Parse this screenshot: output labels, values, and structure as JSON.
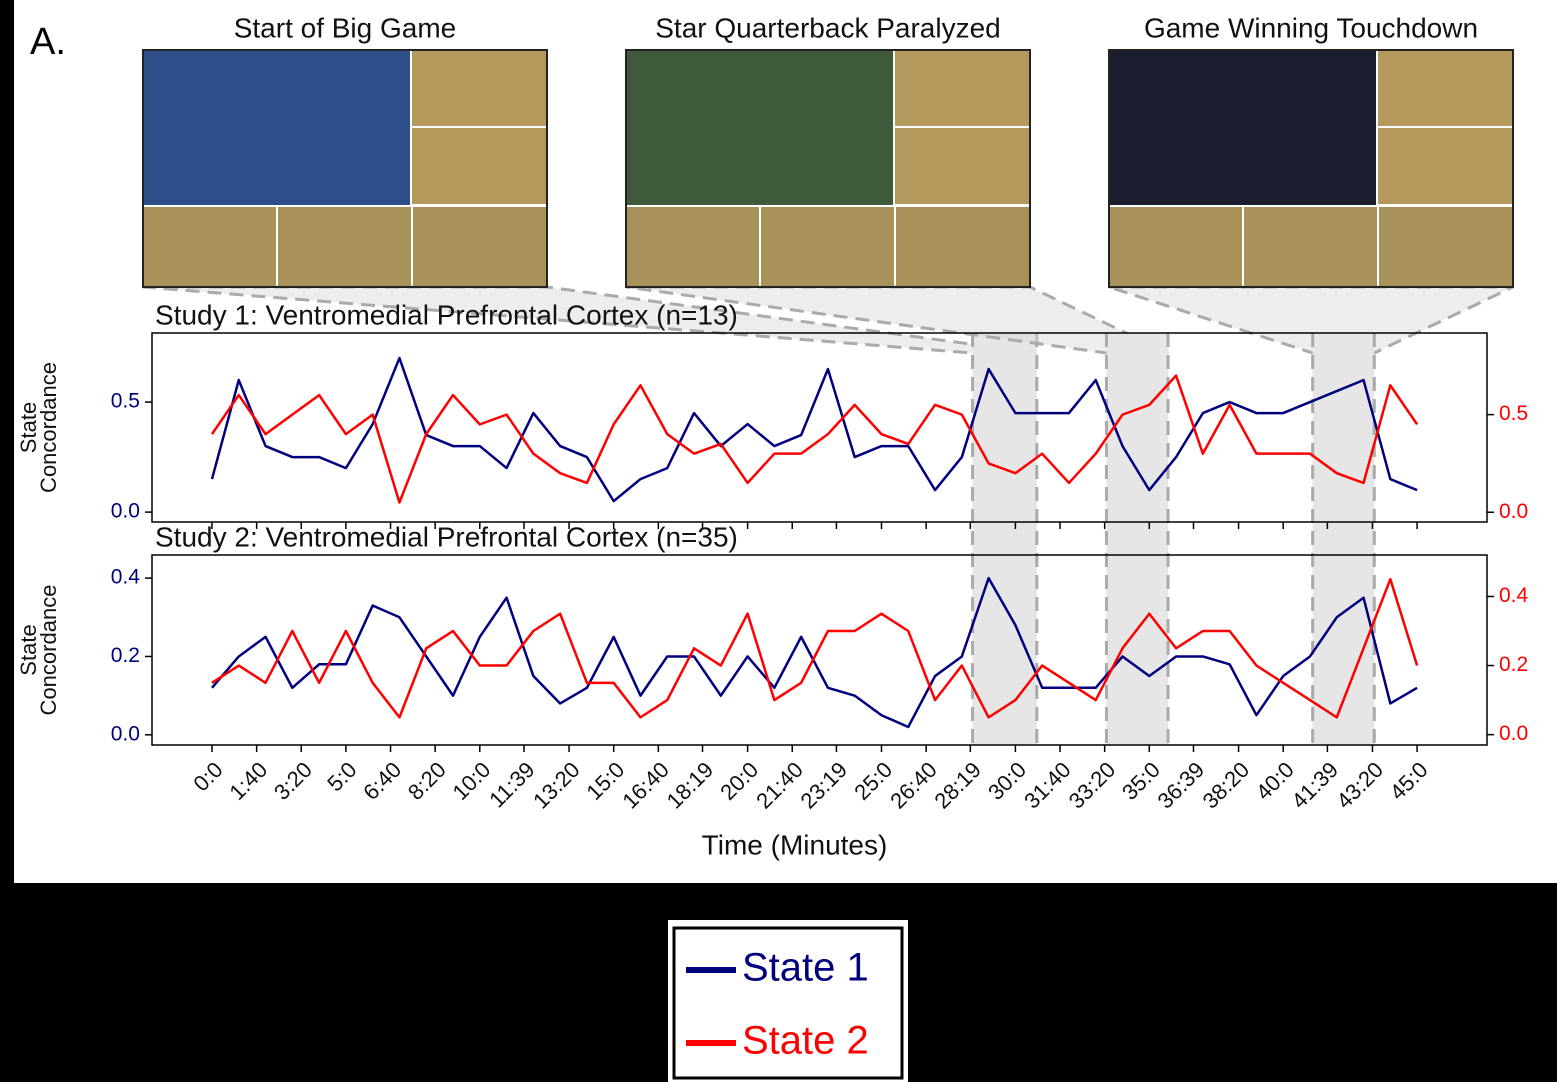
{
  "label": "A.",
  "scenes": [
    {
      "title": "Start of Big Game",
      "start": 28.4,
      "end": 30.8
    },
    {
      "title": "Star Quarterback Paralyzed",
      "start": 33.4,
      "end": 35.7
    },
    {
      "title": "Game Winning Touchdown",
      "start": 41.1,
      "end": 43.4
    }
  ],
  "chart_data": [
    {
      "type": "line",
      "title": "Study 1: Ventromedial Prefrontal Cortex (n=13)",
      "ylabel": [
        "State",
        "Concordance"
      ],
      "x": [
        0,
        1,
        2,
        3,
        4,
        5,
        6,
        7,
        8,
        9,
        10,
        11,
        12,
        13,
        14,
        15,
        16,
        17,
        18,
        19,
        20,
        21,
        22,
        23,
        24,
        25,
        26,
        27,
        28,
        29,
        30,
        31,
        32,
        33,
        34,
        35,
        36,
        37,
        38,
        39,
        40,
        41,
        42,
        43,
        44,
        45
      ],
      "xlim": [
        -2.24,
        47.61
      ],
      "ylim": [
        -0.045,
        0.814
      ],
      "yticks": [
        {
          "value": 0,
          "label": "0.0"
        },
        0.5
      ],
      "y2lim": [
        -0.05,
        0.918
      ],
      "y2ticks": [
        {
          "value": 0,
          "label": "0.0"
        },
        0.5
      ],
      "series": [
        {
          "name": "State 1",
          "color": "#00007f",
          "values": [
            0.15,
            0.6,
            0.3,
            0.25,
            0.25,
            0.2,
            0.4,
            0.7,
            0.35,
            0.3,
            0.3,
            0.2,
            0.45,
            0.3,
            0.25,
            0.05,
            0.15,
            0.2,
            0.45,
            0.3,
            0.4,
            0.3,
            0.35,
            0.65,
            0.25,
            0.3,
            0.3,
            0.1,
            0.25,
            0.65,
            0.45,
            0.45,
            0.45,
            0.6,
            0.3,
            0.1,
            0.25,
            0.45,
            0.5,
            0.45,
            0.45,
            0.5,
            0.55,
            0.6,
            0.15,
            0.1
          ]
        },
        {
          "name": "State 2",
          "color": "#ff0000",
          "axis": "y2",
          "values": [
            0.4,
            0.6,
            0.4,
            0.5,
            0.6,
            0.4,
            0.5,
            0.05,
            0.4,
            0.6,
            0.45,
            0.5,
            0.3,
            0.2,
            0.15,
            0.45,
            0.65,
            0.4,
            0.3,
            0.35,
            0.15,
            0.3,
            0.3,
            0.4,
            0.55,
            0.4,
            0.35,
            0.55,
            0.5,
            0.25,
            0.2,
            0.3,
            0.15,
            0.3,
            0.5,
            0.55,
            0.7,
            0.3,
            0.55,
            0.3,
            0.3,
            0.3,
            0.2,
            0.15,
            0.65,
            0.45
          ]
        }
      ]
    },
    {
      "type": "line",
      "title": "Study 2: Ventromedial Prefrontal Cortex (n=35)",
      "ylabel": [
        "State",
        "Concordance"
      ],
      "xlabel": "Time (Minutes)",
      "x": [
        0,
        1,
        2,
        3,
        4,
        5,
        6,
        7,
        8,
        9,
        10,
        11,
        12,
        13,
        14,
        15,
        16,
        17,
        18,
        19,
        20,
        21,
        22,
        23,
        24,
        25,
        26,
        27,
        28,
        29,
        30,
        31,
        32,
        33,
        34,
        35,
        36,
        37,
        38,
        39,
        40,
        41,
        42,
        43,
        44,
        45
      ],
      "xlim": [
        -2.24,
        47.61
      ],
      "xticks": [
        {
          "value": 0,
          "label": "0:0"
        },
        {
          "value": 1.667,
          "label": "1:40"
        },
        {
          "value": 3.333,
          "label": "3:20"
        },
        {
          "value": 5,
          "label": "5:0"
        },
        {
          "value": 6.667,
          "label": "6:40"
        },
        {
          "value": 8.333,
          "label": "8:20"
        },
        {
          "value": 10,
          "label": "10:0"
        },
        {
          "value": 11.65,
          "label": "11:39"
        },
        {
          "value": 13.333,
          "label": "13:20"
        },
        {
          "value": 15,
          "label": "15:0"
        },
        {
          "value": 16.667,
          "label": "16:40"
        },
        {
          "value": 18.317,
          "label": "18:19"
        },
        {
          "value": 20,
          "label": "20:0"
        },
        {
          "value": 21.667,
          "label": "21:40"
        },
        {
          "value": 23.317,
          "label": "23:19"
        },
        {
          "value": 25,
          "label": "25:0"
        },
        {
          "value": 26.667,
          "label": "26:40"
        },
        {
          "value": 28.317,
          "label": "28:19"
        },
        {
          "value": 30,
          "label": "30:0"
        },
        {
          "value": 31.667,
          "label": "31:40"
        },
        {
          "value": 33.333,
          "label": "33:20"
        },
        {
          "value": 35,
          "label": "35:0"
        },
        {
          "value": 36.65,
          "label": "36:39"
        },
        {
          "value": 38.333,
          "label": "38:20"
        },
        {
          "value": 40,
          "label": "40:0"
        },
        {
          "value": 41.65,
          "label": "41:39"
        },
        {
          "value": 43.333,
          "label": "43:20"
        },
        {
          "value": 45,
          "label": "45:0"
        }
      ],
      "ylim": [
        -0.026,
        0.459
      ],
      "yticks": [
        {
          "value": 0,
          "label": "0.0"
        },
        0.2,
        0.4
      ],
      "y2lim": [
        -0.03,
        0.52
      ],
      "y2ticks": [
        {
          "value": 0,
          "label": "0.0"
        },
        0.2,
        0.4
      ],
      "series": [
        {
          "color": "#00007f",
          "values": [
            0.12,
            0.2,
            0.25,
            0.12,
            0.18,
            0.18,
            0.33,
            0.3,
            0.2,
            0.1,
            0.25,
            0.35,
            0.15,
            0.08,
            0.12,
            0.25,
            0.1,
            0.2,
            0.2,
            0.1,
            0.2,
            0.12,
            0.25,
            0.12,
            0.1,
            0.05,
            0.02,
            0.15,
            0.2,
            0.4,
            0.28,
            0.12,
            0.12,
            0.12,
            0.2,
            0.15,
            0.2,
            0.2,
            0.18,
            0.05,
            0.15,
            0.2,
            0.3,
            0.35,
            0.08,
            0.12
          ]
        },
        {
          "color": "#ff0000",
          "axis": "y2",
          "values": [
            0.15,
            0.2,
            0.15,
            0.3,
            0.15,
            0.3,
            0.15,
            0.05,
            0.25,
            0.3,
            0.2,
            0.2,
            0.3,
            0.35,
            0.15,
            0.15,
            0.05,
            0.1,
            0.25,
            0.2,
            0.35,
            0.1,
            0.15,
            0.3,
            0.3,
            0.35,
            0.3,
            0.1,
            0.2,
            0.05,
            0.1,
            0.2,
            0.15,
            0.1,
            0.25,
            0.35,
            0.25,
            0.3,
            0.3,
            0.2,
            0.15,
            0.1,
            0.05,
            0.25,
            0.45,
            0.2
          ]
        }
      ]
    }
  ]
}
